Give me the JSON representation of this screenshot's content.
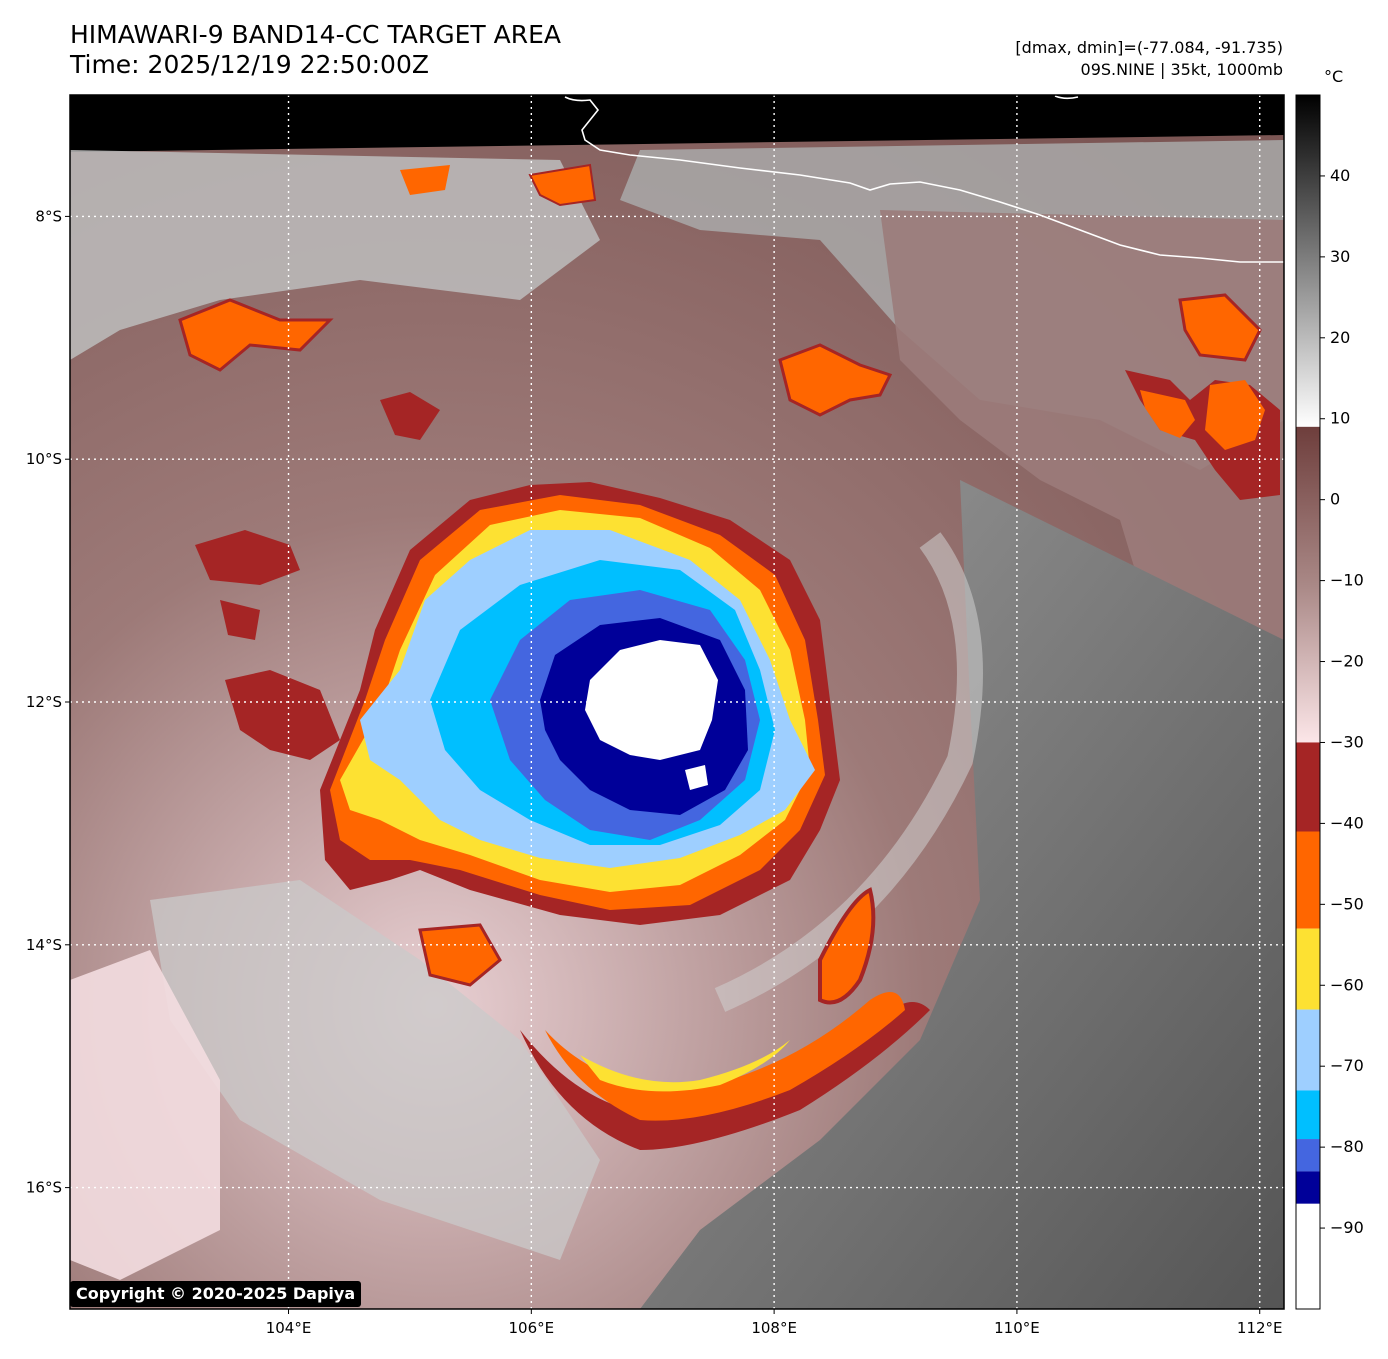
{
  "header": {
    "title_line1": "HIMAWARI-9 BAND14-CC TARGET AREA",
    "title_line2": "Time: 2025/12/19 22:50:00Z",
    "range_line": "[dmax, dmin]=(-77.084, -91.735)",
    "storm_line": "09S.NINE | 35kt, 1000mb"
  },
  "map": {
    "lon_ticks": [
      "104°E",
      "106°E",
      "108°E",
      "110°E",
      "112°E"
    ],
    "lat_ticks": [
      "8°S",
      "10°S",
      "12°S",
      "14°S",
      "16°S"
    ],
    "storm_center_lon": 107.0,
    "storm_center_lat": -11.9
  },
  "colorbar": {
    "unit": "°C",
    "ticks": [
      "40",
      "30",
      "20",
      "10",
      "0",
      "−10",
      "−20",
      "−30",
      "−40",
      "−50",
      "−60",
      "−70",
      "−80",
      "−90"
    ],
    "tick_values": [
      40,
      30,
      20,
      10,
      0,
      -10,
      -20,
      -30,
      -40,
      -50,
      -60,
      -70,
      -80,
      -90
    ],
    "vmin": -100,
    "vmax": 50,
    "segments": [
      {
        "from": 9,
        "to": 50,
        "type": "gradient",
        "colors": [
          "#ffffff",
          "#000000"
        ]
      },
      {
        "from": -30,
        "to": 9,
        "type": "gradient",
        "colors": [
          "#fce6e8",
          "#6e3e3c"
        ]
      },
      {
        "from": -41,
        "to": -30,
        "color": "#a52525"
      },
      {
        "from": -53,
        "to": -41,
        "color": "#ff6600"
      },
      {
        "from": -63,
        "to": -53,
        "color": "#fde132"
      },
      {
        "from": -73,
        "to": -63,
        "color": "#9ecfff"
      },
      {
        "from": -79,
        "to": -73,
        "color": "#00bfff"
      },
      {
        "from": -83,
        "to": -79,
        "color": "#4466e0"
      },
      {
        "from": -87,
        "to": -83,
        "color": "#000099"
      },
      {
        "from": -100,
        "to": -87,
        "color": "#ffffff"
      }
    ]
  },
  "footer": {
    "copyright": "Copyright © 2020-2025 Dapiya"
  }
}
